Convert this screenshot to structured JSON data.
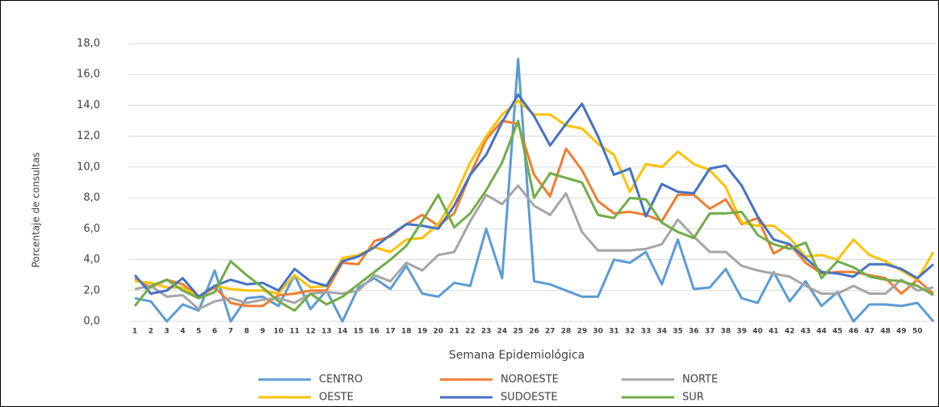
{
  "chart_data": {
    "type": "line",
    "y_label": "Porcentaje de consultas",
    "x_label": "Semana Epidemiológica",
    "categories": [
      "1",
      "2",
      "3",
      "4",
      "5",
      "6",
      "7",
      "8",
      "9",
      "10",
      "11",
      "12",
      "13",
      "14",
      "15",
      "16",
      "17",
      "18",
      "19",
      "20",
      "21",
      "22",
      "23",
      "24",
      "25",
      "26",
      "27",
      "28",
      "29",
      "30",
      "31",
      "32",
      "33",
      "34",
      "35",
      "36",
      "37",
      "38",
      "39",
      "40",
      "41",
      "42",
      "43",
      "44",
      "45",
      "46",
      "47",
      "48",
      "49",
      "50",
      null
    ],
    "ylim": [
      0,
      18
    ],
    "yticks": [
      {
        "value": 0,
        "label": "0,0"
      },
      {
        "value": 2,
        "label": "2,0"
      },
      {
        "value": 4,
        "label": "4,0"
      },
      {
        "value": 6,
        "label": "6,0"
      },
      {
        "value": 8,
        "label": "8,0"
      },
      {
        "value": 10,
        "label": "10,0"
      },
      {
        "value": 12,
        "label": "12,0"
      },
      {
        "value": 14,
        "label": "14,0"
      },
      {
        "value": 16,
        "label": "16,0"
      },
      {
        "value": 18,
        "label": "18,0"
      }
    ],
    "grid": true,
    "legend": "bottom",
    "series": [
      {
        "name": "CENTRO",
        "color": "#5B9BD5",
        "values": [
          1.5,
          1.3,
          0,
          1.1,
          0.7,
          3.3,
          0,
          1.5,
          1.6,
          1.0,
          3.0,
          0.8,
          2.0,
          0,
          2.2,
          2.8,
          2.1,
          3.6,
          1.8,
          1.6,
          2.5,
          2.3,
          6.0,
          2.8,
          17.0,
          2.6,
          2.4,
          2.0,
          1.6,
          1.6,
          4.0,
          3.8,
          4.5,
          2.4,
          5.3,
          2.1,
          2.2,
          3.4,
          1.5,
          1.2,
          3.2,
          1.3,
          2.6,
          1.0,
          1.9,
          0,
          1.1,
          1.1,
          1.0,
          1.2,
          0
        ]
      },
      {
        "name": "NOROESTE",
        "color": "#ED7D31",
        "values": [
          2.8,
          2.2,
          2.7,
          2.4,
          1.6,
          2.2,
          1.2,
          1.0,
          1.0,
          1.7,
          1.8,
          2.0,
          2.0,
          3.8,
          3.7,
          5.2,
          5.5,
          6.3,
          6.9,
          6.2,
          7.0,
          9.5,
          11.8,
          13.0,
          12.8,
          9.5,
          8.1,
          11.2,
          9.8,
          7.8,
          7.0,
          7.1,
          6.9,
          6.5,
          8.2,
          8.2,
          7.3,
          7.9,
          6.3,
          6.7,
          4.4,
          5.0,
          3.8,
          3.1,
          3.2,
          3.2,
          3.0,
          2.8,
          1.8,
          2.7,
          1.8
        ]
      },
      {
        "name": "NORTE",
        "color": "#A5A5A5",
        "values": [
          2.1,
          2.3,
          1.6,
          1.7,
          0.8,
          1.3,
          1.5,
          1.2,
          1.4,
          1.5,
          1.2,
          1.8,
          1.9,
          1.8,
          2.0,
          3.0,
          2.6,
          3.8,
          3.3,
          4.3,
          4.5,
          6.5,
          8.2,
          7.6,
          8.8,
          7.5,
          6.9,
          8.3,
          5.8,
          4.6,
          4.6,
          4.6,
          4.7,
          5.0,
          6.6,
          5.5,
          4.5,
          4.5,
          3.6,
          3.3,
          3.1,
          2.9,
          2.3,
          1.8,
          1.8,
          2.3,
          1.8,
          1.8,
          2.7,
          2.0,
          2.2
        ]
      },
      {
        "name": "OESTE",
        "color": "#FFC000",
        "values": [
          2.6,
          2.5,
          2.2,
          2.2,
          1.6,
          2.3,
          2.1,
          2.0,
          2.0,
          1.8,
          3.0,
          2.2,
          2.3,
          4.1,
          4.3,
          4.8,
          4.5,
          5.3,
          5.4,
          6.3,
          8.0,
          10.3,
          12.0,
          13.4,
          14.3,
          13.4,
          13.4,
          12.7,
          12.5,
          11.5,
          10.8,
          8.4,
          10.2,
          10.0,
          11.0,
          10.2,
          9.8,
          8.7,
          6.4,
          6.2,
          6.2,
          5.4,
          4.2,
          4.3,
          4.0,
          5.3,
          4.3,
          3.9,
          3.3,
          2.7,
          4.5
        ]
      },
      {
        "name": "SUDOESTE",
        "color": "#4472C4",
        "values": [
          3.0,
          1.8,
          2.0,
          2.8,
          1.6,
          2.3,
          2.7,
          2.4,
          2.5,
          2.0,
          3.4,
          2.6,
          2.3,
          3.9,
          4.2,
          4.8,
          5.6,
          6.3,
          6.2,
          6.0,
          7.5,
          9.5,
          10.8,
          12.9,
          14.7,
          13.3,
          11.4,
          12.8,
          14.1,
          12.0,
          9.5,
          9.9,
          6.8,
          8.9,
          8.4,
          8.3,
          9.9,
          10.1,
          8.8,
          6.8,
          5.3,
          5.0,
          4.1,
          3.2,
          3.1,
          2.9,
          3.7,
          3.7,
          3.4,
          2.8,
          3.7
        ]
      },
      {
        "name": "SUR",
        "color": "#70AD47",
        "values": [
          1.0,
          2.3,
          2.7,
          2.0,
          1.5,
          1.9,
          3.9,
          3.0,
          2.2,
          1.3,
          0.7,
          1.8,
          1.1,
          1.6,
          2.4,
          3.2,
          4.0,
          4.9,
          6.5,
          8.2,
          6.1,
          7.0,
          8.5,
          10.3,
          13.0,
          8.0,
          9.6,
          9.3,
          9.0,
          6.9,
          6.7,
          8.0,
          7.9,
          6.4,
          5.8,
          5.4,
          7.0,
          7.0,
          7.1,
          5.6,
          5.0,
          4.7,
          5.1,
          2.8,
          3.9,
          3.5,
          2.9,
          2.7,
          2.6,
          2.3,
          1.7
        ]
      }
    ]
  }
}
